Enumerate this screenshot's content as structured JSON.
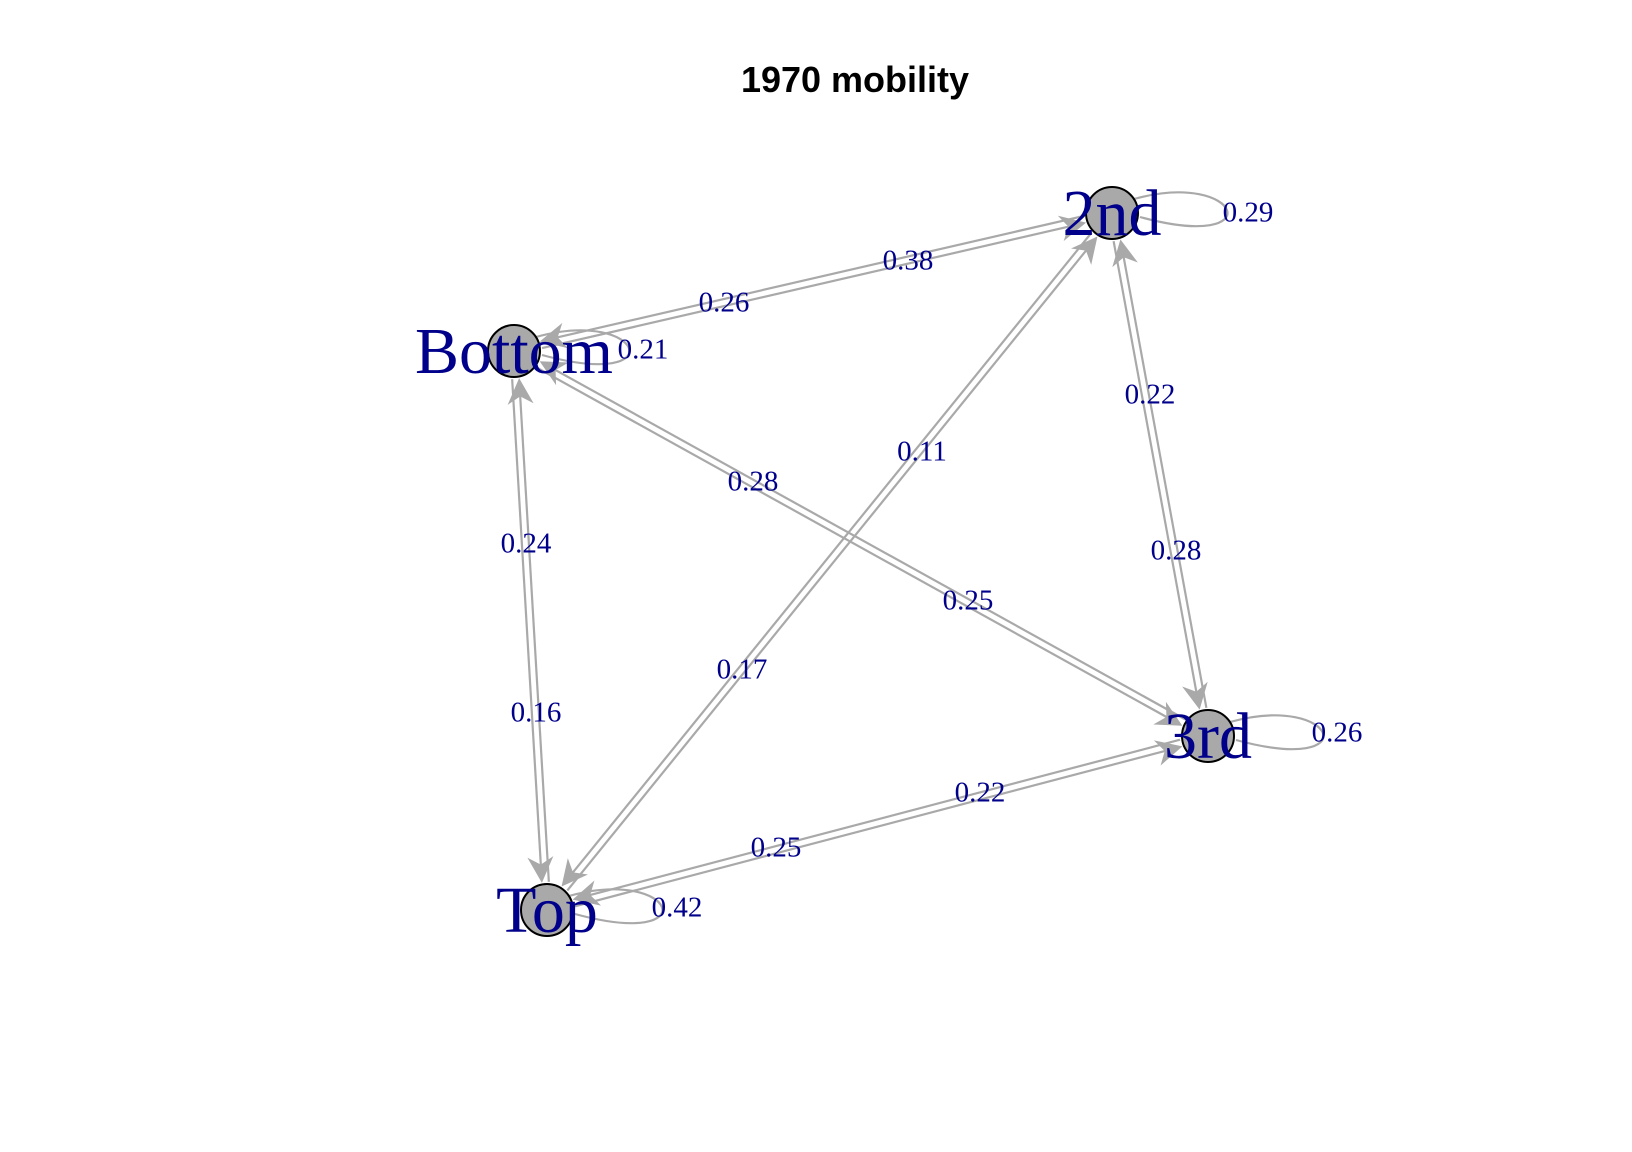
{
  "title": "1970 mobility",
  "colors": {
    "node_fill": "#a9a9a9",
    "node_border": "#000000",
    "edge": "#a9a9a9",
    "label": "#00008b",
    "title": "#000000"
  },
  "nodes": [
    {
      "id": "2nd",
      "label": "2nd"
    },
    {
      "id": "Bottom",
      "label": "Bottom"
    },
    {
      "id": "3rd",
      "label": "3rd"
    },
    {
      "id": "Top",
      "label": "Top"
    }
  ],
  "edges": [
    {
      "from": "Bottom",
      "to": "2nd",
      "weight": "0.38"
    },
    {
      "from": "2nd",
      "to": "Bottom",
      "weight": "0.26"
    },
    {
      "from": "Bottom",
      "to": "3rd",
      "weight": "0.28"
    },
    {
      "from": "3rd",
      "to": "Bottom",
      "weight": "0.25"
    },
    {
      "from": "Bottom",
      "to": "Top",
      "weight": "0.24"
    },
    {
      "from": "Top",
      "to": "Bottom",
      "weight": "0.16"
    },
    {
      "from": "2nd",
      "to": "3rd",
      "weight": "0.22"
    },
    {
      "from": "3rd",
      "to": "2nd",
      "weight": "0.28"
    },
    {
      "from": "2nd",
      "to": "Top",
      "weight": "0.11"
    },
    {
      "from": "Top",
      "to": "2nd",
      "weight": "0.17"
    },
    {
      "from": "3rd",
      "to": "Top",
      "weight": "0.22"
    },
    {
      "from": "Top",
      "to": "3rd",
      "weight": "0.25"
    },
    {
      "from": "2nd",
      "to": "2nd",
      "weight": "0.29"
    },
    {
      "from": "Bottom",
      "to": "Bottom",
      "weight": "0.21"
    },
    {
      "from": "3rd",
      "to": "3rd",
      "weight": "0.26"
    },
    {
      "from": "Top",
      "to": "Top",
      "weight": "0.42"
    }
  ]
}
